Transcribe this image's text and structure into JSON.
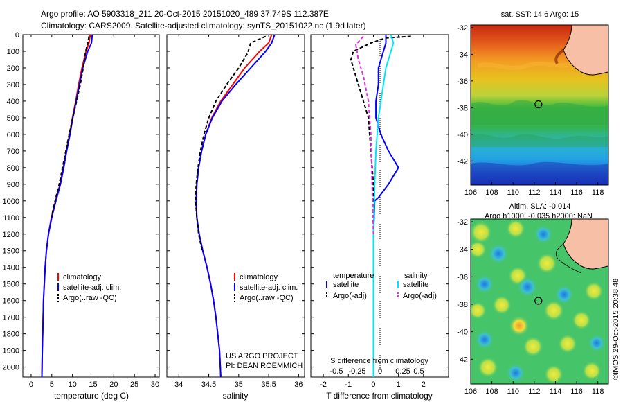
{
  "title": {
    "line1": "Argo profile: AO 5903318_211 20-Oct-2015 20151020_489 37.749S 112.387E",
    "line2": "Climatology: CARS2009. Satellite-adjusted climatology: synTS_20151022.nc (1.9d later)"
  },
  "colors": {
    "climatology": "#ff0000",
    "satellite": "#0000ff",
    "argo": "#000000",
    "sal_satellite": "#00e5ff",
    "sal_argo": "#e030e0"
  },
  "depth_axis": {
    "ticks": [
      0,
      100,
      200,
      300,
      400,
      500,
      600,
      700,
      800,
      900,
      1000,
      1100,
      1200,
      1300,
      1400,
      1500,
      1600,
      1700,
      1800,
      1900,
      2000
    ],
    "range": [
      0,
      2060
    ]
  },
  "panels": {
    "temperature": {
      "xlabel": "temperature (deg C)",
      "xticks": [
        0,
        5,
        10,
        15,
        20,
        25,
        30
      ],
      "xlim": [
        -2,
        31
      ],
      "legend": [
        "climatology",
        "satellite-adj. clim.",
        "Argo(..raw -QC)"
      ]
    },
    "salinity": {
      "xlabel": "salinity",
      "xticks": [
        34,
        34.5,
        35,
        35.5,
        36
      ],
      "xtick_labels": [
        "34",
        "34.5",
        "35",
        "35.5",
        "36"
      ],
      "xlim": [
        33.8,
        36.1
      ],
      "legend": [
        "climatology",
        "satellite-adj. clim.",
        "Argo(..raw -QC)"
      ],
      "credit_line1": "US ARGO PROJECT",
      "credit_line2": "PI: DEAN ROEMMICH"
    },
    "difference": {
      "xlabel": "T difference from climatology",
      "xticks": [
        -2,
        -1,
        0,
        1,
        2
      ],
      "xlim": [
        -2.5,
        3.0
      ],
      "top_label": "S difference from climatology",
      "s_ticks": [
        "-0.5",
        "-0.25",
        "0",
        "0.25",
        "0.5"
      ],
      "legend_temp_title": "temperature",
      "legend_sal_title": "salinity",
      "legend_items": [
        "satellite",
        "Argo(-adj)",
        "satellite",
        "Argo(-adj)"
      ]
    }
  },
  "maps": {
    "sst": {
      "title": "sat. SST: 14.6 Argo: 15",
      "xticks": [
        106,
        108,
        110,
        112,
        114,
        116,
        118
      ],
      "yticks": [
        -32,
        -34,
        -36,
        -38,
        -40,
        -42
      ],
      "xlim": [
        106,
        119
      ],
      "ylim": [
        -43.8,
        -31.8
      ],
      "marker": {
        "lon": 112.387,
        "lat": -37.749
      }
    },
    "sla": {
      "title_line1": "Altim. SLA: -0.014",
      "title_line2": "Argo h1000: -0.035 h2000: NaN",
      "xticks": [
        106,
        108,
        110,
        112,
        114,
        116,
        118
      ],
      "yticks": [
        -32,
        -34,
        -36,
        -38,
        -40,
        -42
      ],
      "xlim": [
        106,
        119
      ],
      "ylim": [
        -43.8,
        -31.8
      ],
      "marker": {
        "lon": 112.387,
        "lat": -37.749
      }
    }
  },
  "credit_vertical": "©IMOS 29-Oct-2015 20:38:48",
  "chart_data": [
    {
      "type": "line",
      "title": "",
      "xlabel": "temperature (deg C)",
      "ylabel": "",
      "xlim": [
        -2,
        31
      ],
      "ylim": [
        2060,
        0
      ],
      "series": [
        {
          "name": "climatology",
          "x": [
            14.3,
            14.0,
            13.3,
            12.3,
            11.5,
            10.8,
            10.0,
            9.3,
            8.5,
            7.8,
            7.0,
            5.9,
            4.9,
            4.2,
            3.7,
            3.4,
            3.2,
            3.0,
            2.9,
            2.8,
            2.7,
            2.6
          ],
          "y": [
            0,
            50,
            100,
            200,
            300,
            400,
            500,
            600,
            700,
            800,
            900,
            1000,
            1100,
            1200,
            1300,
            1400,
            1500,
            1600,
            1700,
            1800,
            1900,
            2060
          ]
        },
        {
          "name": "satellite-adj. clim.",
          "x": [
            14.8,
            14.6,
            13.7,
            12.5,
            11.7,
            10.9,
            10.1,
            9.4,
            8.6,
            7.9,
            7.1,
            6.0,
            5.0,
            4.2,
            3.7,
            3.4,
            3.2,
            3.0,
            2.9,
            2.8,
            2.7,
            2.6
          ],
          "y": [
            0,
            50,
            100,
            200,
            300,
            400,
            500,
            600,
            700,
            800,
            900,
            1000,
            1100,
            1200,
            1300,
            1400,
            1500,
            1600,
            1700,
            1800,
            1900,
            2060
          ]
        },
        {
          "name": "Argo(..raw -QC)",
          "x": [
            14.0,
            13.8,
            13.2,
            12.6,
            11.9,
            11.0,
            10.1,
            9.2,
            8.4,
            7.6,
            6.8,
            5.8,
            4.9
          ],
          "y": [
            10,
            40,
            100,
            200,
            300,
            400,
            500,
            600,
            700,
            800,
            900,
            1000,
            1100
          ]
        }
      ]
    },
    {
      "type": "line",
      "title": "",
      "xlabel": "salinity",
      "ylabel": "",
      "xlim": [
        33.8,
        36.1
      ],
      "ylim": [
        2060,
        0
      ],
      "series": [
        {
          "name": "climatology",
          "x": [
            35.55,
            35.5,
            35.35,
            35.1,
            34.9,
            34.7,
            34.55,
            34.45,
            34.38,
            34.33,
            34.3,
            34.29,
            34.3,
            34.34,
            34.4,
            34.47,
            34.53,
            34.58,
            34.62,
            34.65,
            34.68,
            34.7
          ],
          "y": [
            0,
            50,
            100,
            200,
            300,
            400,
            500,
            600,
            700,
            800,
            900,
            1000,
            1100,
            1200,
            1300,
            1400,
            1500,
            1600,
            1700,
            1800,
            1900,
            2060
          ]
        },
        {
          "name": "satellite-adj. clim.",
          "x": [
            35.6,
            35.55,
            35.45,
            35.2,
            34.95,
            34.72,
            34.56,
            34.45,
            34.38,
            34.33,
            34.3,
            34.29,
            34.3,
            34.34,
            34.4,
            34.47,
            34.53,
            34.58,
            34.62,
            34.65,
            34.68,
            34.7
          ],
          "y": [
            0,
            50,
            100,
            200,
            300,
            400,
            500,
            600,
            700,
            800,
            900,
            1000,
            1100,
            1200,
            1300,
            1400,
            1500,
            1600,
            1700,
            1800,
            1900,
            2060
          ]
        },
        {
          "name": "Argo(..raw -QC)",
          "x": [
            35.45,
            35.2,
            35.15,
            35.0,
            34.8,
            34.62,
            34.5,
            34.42,
            34.36,
            34.32,
            34.29,
            34.28,
            34.3,
            34.33,
            34.39
          ],
          "y": [
            10,
            50,
            110,
            200,
            300,
            400,
            500,
            600,
            700,
            800,
            900,
            1000,
            1100,
            1200,
            1300
          ]
        }
      ]
    },
    {
      "type": "line",
      "title": "",
      "xlabel": "T difference from climatology",
      "ylabel": "",
      "xlim": [
        -2.5,
        3.0
      ],
      "ylim": [
        2060,
        0
      ],
      "series": [
        {
          "name": "temperature satellite",
          "x": [
            0.5,
            0.5,
            0.4,
            0.2,
            0.2,
            0.1,
            0.1,
            0.3,
            0.6,
            1.0,
            0.6,
            0.2,
            0.05,
            0.0,
            0.0,
            0.0
          ],
          "y": [
            0,
            50,
            100,
            200,
            300,
            400,
            500,
            600,
            700,
            800,
            900,
            980,
            1000,
            1200,
            1500,
            2060
          ]
        },
        {
          "name": "temperature Argo(-adj)",
          "x": [
            1.5,
            0.5,
            -0.1,
            -0.8,
            -0.9,
            -0.7,
            -0.4,
            -0.2,
            -0.1,
            0.0,
            0.0
          ],
          "y": [
            10,
            20,
            50,
            100,
            150,
            250,
            400,
            500,
            700,
            900,
            1100
          ]
        },
        {
          "name": "salinity satellite",
          "x": [
            0.7,
            0.8,
            0.7,
            0.5,
            0.4,
            0.3,
            0.2,
            0.1,
            0.05,
            0.0,
            0.0
          ],
          "y": [
            0,
            50,
            100,
            200,
            300,
            400,
            500,
            700,
            900,
            1200,
            2060
          ]
        },
        {
          "name": "salinity Argo(-adj)",
          "x": [
            -0.4,
            -0.7,
            -0.6,
            -0.4,
            -0.2,
            -0.1,
            -0.05,
            0.0
          ],
          "y": [
            10,
            60,
            150,
            250,
            400,
            600,
            900,
            1200
          ]
        }
      ]
    }
  ]
}
